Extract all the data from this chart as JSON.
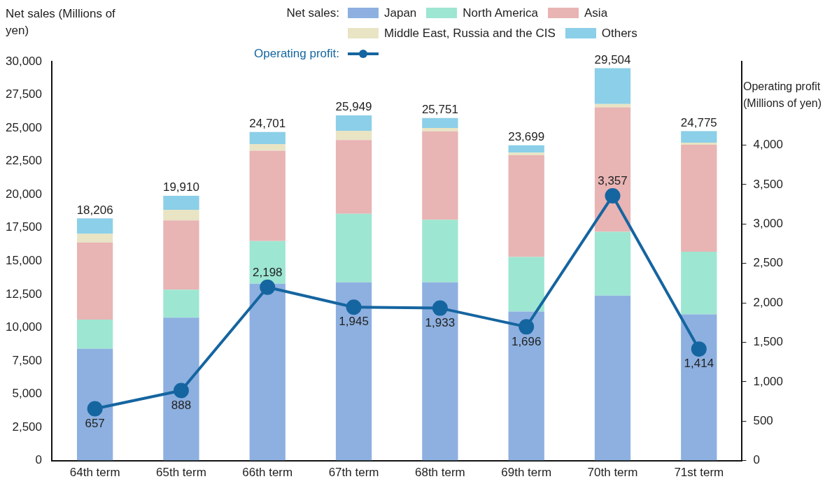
{
  "chart_data": {
    "type": "bar",
    "stacked": true,
    "categories": [
      "64th term",
      "65th term",
      "66th term",
      "67th term",
      "68th term",
      "69th term",
      "70th term",
      "71st term"
    ],
    "ylabel": "Net sales (Millions of yen)",
    "y2label": "Operating profit (Millions of yen)",
    "legend_title": "Net sales:",
    "ylim": [
      0,
      30000
    ],
    "yticks": [
      {
        "value": 0,
        "label": "0"
      },
      {
        "value": 2500,
        "label": "2,500"
      },
      {
        "value": 5000,
        "label": "5,000"
      },
      {
        "value": 7500,
        "label": "7,500"
      },
      {
        "value": 10000,
        "label": "10,000"
      },
      {
        "value": 12500,
        "label": "12,500"
      },
      {
        "value": 15000,
        "label": "15,000"
      },
      {
        "value": 17500,
        "label": "17,500"
      },
      {
        "value": 20000,
        "label": "20,000"
      },
      {
        "value": 22500,
        "label": "22,500"
      },
      {
        "value": 25000,
        "label": "25,000"
      },
      {
        "value": 27500,
        "label": "27,500"
      },
      {
        "value": 30000,
        "label": "30,000"
      }
    ],
    "y2lim": [
      0,
      5060
    ],
    "y2ticks": [
      {
        "value": 0,
        "label": "0"
      },
      {
        "value": 500,
        "label": "500"
      },
      {
        "value": 1000,
        "label": "1,000"
      },
      {
        "value": 1500,
        "label": "1,500"
      },
      {
        "value": 2000,
        "label": "2,000"
      },
      {
        "value": 2500,
        "label": "2,500"
      },
      {
        "value": 3000,
        "label": "3,000"
      },
      {
        "value": 3500,
        "label": "3,500"
      },
      {
        "value": 4000,
        "label": "4,000"
      }
    ],
    "grid": false,
    "legend": "top",
    "totals": [
      "18,206",
      "19,910",
      "24,701",
      "25,949",
      "25,751",
      "23,699",
      "29,504",
      "24,775"
    ],
    "series": [
      {
        "name": "Japan",
        "color": "#8db0e0",
        "values": [
          8400,
          10750,
          13300,
          13400,
          13400,
          11200,
          12400,
          11000
        ]
      },
      {
        "name": "North America",
        "color": "#9de6d2",
        "values": [
          2200,
          2100,
          3200,
          5150,
          4700,
          4100,
          4800,
          4700
        ]
      },
      {
        "name": "Asia",
        "color": "#e8b4b4",
        "values": [
          5800,
          5200,
          6800,
          5550,
          6650,
          7650,
          9350,
          8050
        ]
      },
      {
        "name": "Middle East,  Russia and the CIS",
        "color": "#e8e4c4",
        "values": [
          650,
          800,
          500,
          700,
          250,
          200,
          250,
          150
        ]
      },
      {
        "name": "Others",
        "color": "#8ccfe8",
        "values": [
          1156,
          1060,
          901,
          1149,
          751,
          549,
          2704,
          875
        ]
      },
      {
        "name": "Operating profit:",
        "type": "line",
        "axis": "y2",
        "color": "#1565a0",
        "marker": "circle",
        "values": [
          657,
          888,
          2198,
          1945,
          1933,
          1696,
          3357,
          1414
        ],
        "value_labels": [
          "657",
          "888",
          "2,198",
          "1,945",
          "1,933",
          "1,696",
          "3,357",
          "1,414"
        ]
      }
    ]
  }
}
